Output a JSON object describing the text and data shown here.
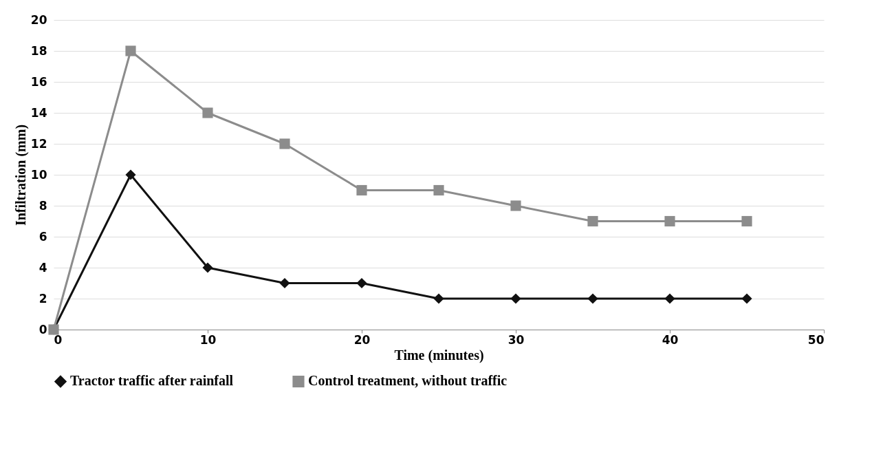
{
  "chart_data": {
    "type": "line",
    "xlabel": "Time (minutes)",
    "ylabel": "Infiltration (mm)",
    "x": [
      0,
      5,
      10,
      15,
      20,
      25,
      30,
      35,
      40,
      45
    ],
    "series": [
      {
        "name": "Tractor traffic after rainfall",
        "color": "#111111",
        "marker": "diamond",
        "values": [
          0,
          10,
          4,
          3,
          3,
          2,
          2,
          2,
          2,
          2
        ]
      },
      {
        "name": "Control treatment, without traffic",
        "color": "#8c8c8c",
        "marker": "square",
        "values": [
          0,
          18,
          14,
          12,
          9,
          9,
          8,
          7,
          7,
          7
        ]
      }
    ],
    "xlim": [
      0,
      50
    ],
    "xticks": [
      0,
      10,
      20,
      30,
      40,
      50
    ],
    "ylim": [
      0,
      20
    ],
    "yticks": [
      0,
      2,
      4,
      6,
      8,
      10,
      12,
      14,
      16,
      18,
      20
    ],
    "grid": "y",
    "legend": "bottom",
    "line_style": "solid"
  }
}
